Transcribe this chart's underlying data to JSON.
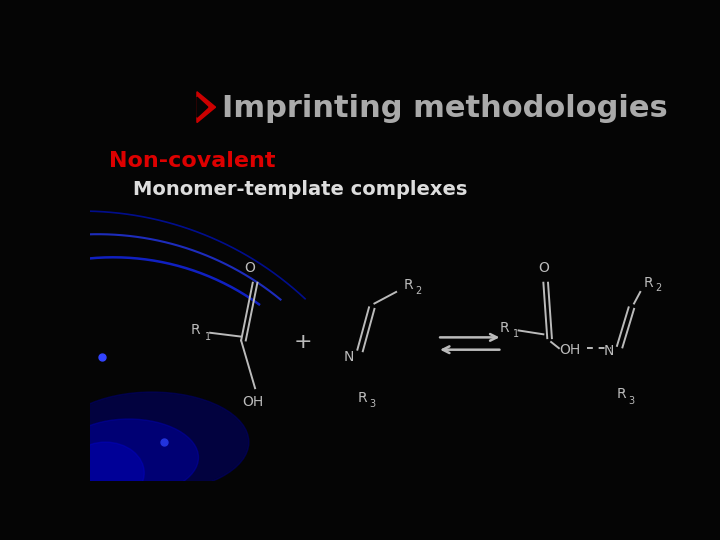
{
  "background_color": "#050505",
  "title_arrow_color": "#cc0000",
  "title_text": "Imprinting methodologies",
  "title_fontsize": 22,
  "title_color": "#aaaaaa",
  "subtitle1": "Non-covalent",
  "subtitle1_color": "#dd0000",
  "subtitle1_fontsize": 16,
  "subtitle2": "Monomer-template complexes",
  "subtitle2_color": "#dddddd",
  "subtitle2_fontsize": 14,
  "chem_color": "#bbbbbb",
  "chem_fontsize": 10,
  "chem_sub_fontsize": 7,
  "lw": 1.4
}
